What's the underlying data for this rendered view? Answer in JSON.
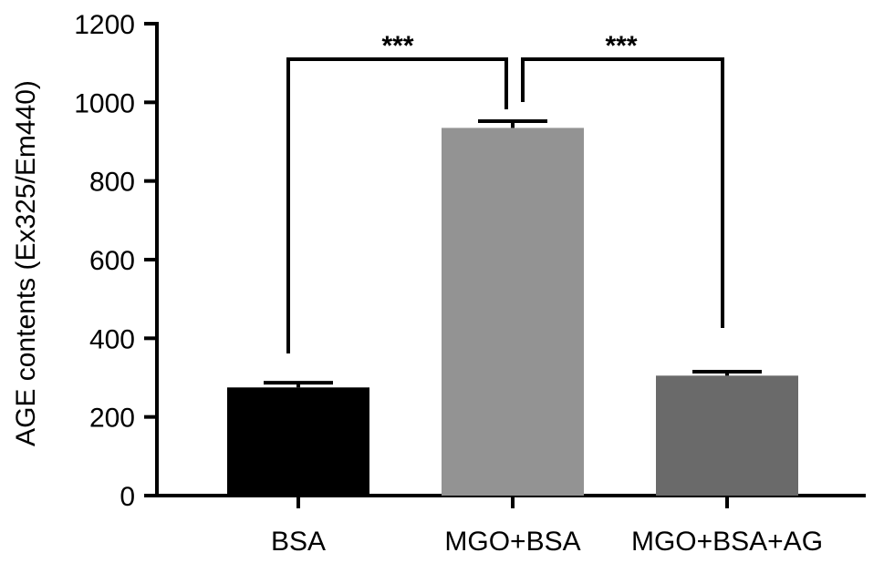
{
  "chart_data": {
    "type": "bar",
    "title": "",
    "xlabel": "",
    "ylabel": "AGE contents (Ex325/Em440)",
    "ylim": [
      0,
      1200
    ],
    "yticks": [
      0,
      200,
      400,
      600,
      800,
      1000,
      1200
    ],
    "categories": [
      "BSA",
      "MGO+BSA",
      "MGO+BSA+AG"
    ],
    "values": [
      275,
      935,
      305
    ],
    "errors": [
      12,
      17,
      10
    ],
    "colors": [
      "#000000",
      "#939393",
      "#6a6a6a"
    ],
    "grid": false,
    "legend": "none",
    "significance": [
      {
        "from": "BSA",
        "to": "MGO+BSA",
        "label": "***"
      },
      {
        "from": "MGO+BSA",
        "to": "MGO+BSA+AG",
        "label": "***"
      }
    ]
  }
}
